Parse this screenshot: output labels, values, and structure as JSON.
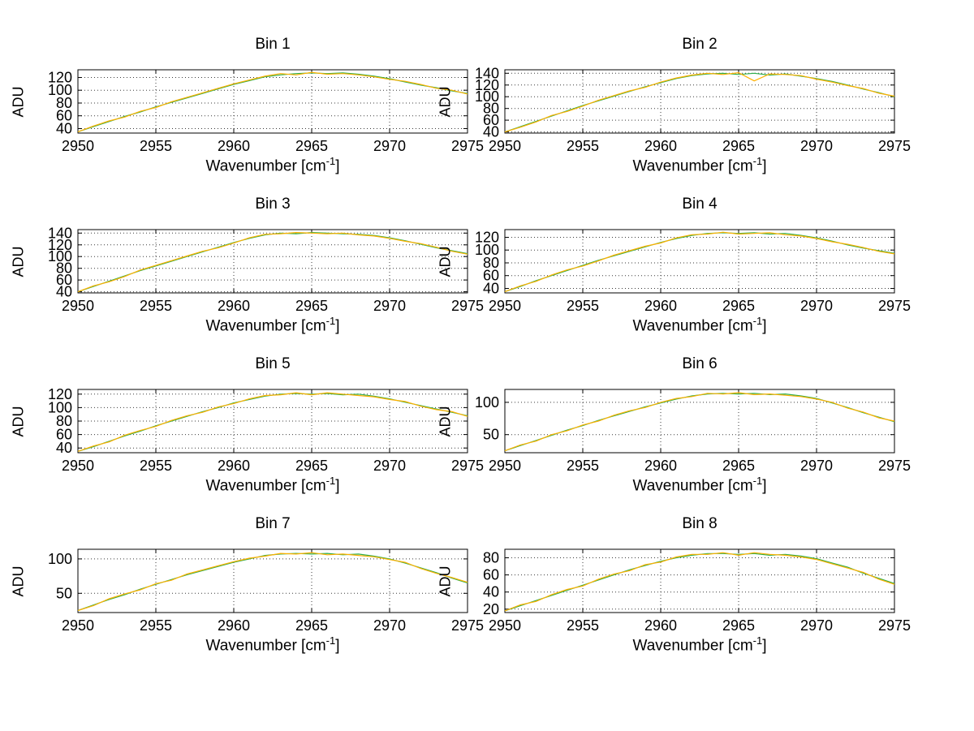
{
  "labels": {
    "xlabel_base": "Wavenumber [cm",
    "xlabel_sup": "-1",
    "xlabel_close": "]",
    "ylabel": "ADU"
  },
  "colors": {
    "series_green": "#2faf4b",
    "series_orange": "#ffb000",
    "grid": "#3a3a3a",
    "axis": "#000000",
    "background": "#ffffff"
  },
  "chart_data": [
    {
      "type": "line",
      "title": "Bin 1",
      "ylabel": "ADU",
      "xlabel": "Wavenumber [cm^-1]",
      "xlim": [
        2950,
        2975
      ],
      "ylim": [
        33,
        132
      ],
      "xticks": [
        2950,
        2955,
        2960,
        2965,
        2970,
        2975
      ],
      "yticks": [
        40,
        60,
        80,
        100,
        120
      ],
      "grid": true,
      "x_start": 2950,
      "x_step": 1,
      "series": [
        {
          "name": "spectrum-green",
          "color": "#2faf4b",
          "values": [
            35,
            43,
            51,
            59,
            66,
            74,
            81,
            88,
            95,
            102,
            109,
            115,
            121,
            124,
            126,
            127,
            126,
            127,
            125,
            122,
            118,
            113,
            108,
            104,
            99,
            95
          ]
        },
        {
          "name": "spectrum-orange",
          "color": "#ffb000",
          "values": [
            35,
            44,
            52,
            58,
            67,
            73,
            82,
            89,
            96,
            103,
            110,
            116,
            122,
            126,
            124,
            128,
            125,
            126,
            124,
            121,
            117,
            114,
            109,
            103,
            100,
            94
          ]
        }
      ]
    },
    {
      "type": "line",
      "title": "Bin 2",
      "ylabel": "ADU",
      "xlabel": "Wavenumber [cm^-1]",
      "xlim": [
        2950,
        2975
      ],
      "ylim": [
        38,
        146
      ],
      "xticks": [
        2950,
        2955,
        2960,
        2965,
        2970,
        2975
      ],
      "yticks": [
        40,
        60,
        80,
        100,
        120,
        140
      ],
      "grid": true,
      "x_start": 2950,
      "x_step": 1,
      "series": [
        {
          "name": "spectrum-green",
          "color": "#2faf4b",
          "values": [
            40,
            49,
            58,
            67,
            76,
            85,
            93,
            101,
            109,
            117,
            124,
            131,
            136,
            139,
            140,
            138,
            140,
            137,
            139,
            135,
            131,
            126,
            120,
            113,
            107,
            100
          ]
        },
        {
          "name": "spectrum-orange",
          "color": "#ffb000",
          "values": [
            40,
            48,
            57,
            68,
            75,
            84,
            94,
            102,
            110,
            116,
            125,
            132,
            137,
            140,
            138,
            141,
            127,
            139,
            138,
            136,
            130,
            125,
            119,
            114,
            106,
            101
          ]
        }
      ]
    },
    {
      "type": "line",
      "title": "Bin 3",
      "ylabel": "ADU",
      "xlabel": "Wavenumber [cm^-1]",
      "xlim": [
        2950,
        2975
      ],
      "ylim": [
        38,
        146
      ],
      "xticks": [
        2950,
        2955,
        2960,
        2965,
        2970,
        2975
      ],
      "yticks": [
        40,
        60,
        80,
        100,
        120,
        140
      ],
      "grid": true,
      "x_start": 2950,
      "x_step": 1,
      "series": [
        {
          "name": "spectrum-green",
          "color": "#2faf4b",
          "values": [
            40,
            49,
            58,
            67,
            76,
            84,
            92,
            100,
            108,
            116,
            124,
            131,
            137,
            140,
            139,
            141,
            140,
            139,
            138,
            136,
            132,
            127,
            121,
            115,
            110,
            105
          ]
        },
        {
          "name": "spectrum-orange",
          "color": "#ffb000",
          "values": [
            40,
            50,
            57,
            66,
            77,
            85,
            93,
            101,
            109,
            115,
            123,
            132,
            138,
            139,
            141,
            140,
            139,
            140,
            137,
            135,
            131,
            126,
            122,
            116,
            109,
            104
          ]
        }
      ]
    },
    {
      "type": "line",
      "title": "Bin 4",
      "ylabel": "ADU",
      "xlabel": "Wavenumber [cm^-1]",
      "xlim": [
        2950,
        2975
      ],
      "ylim": [
        33,
        132
      ],
      "xticks": [
        2950,
        2955,
        2960,
        2965,
        2970,
        2975
      ],
      "yticks": [
        40,
        60,
        80,
        100,
        120
      ],
      "grid": true,
      "x_start": 2950,
      "x_step": 1,
      "series": [
        {
          "name": "spectrum-green",
          "color": "#2faf4b",
          "values": [
            35,
            43,
            52,
            60,
            68,
            76,
            84,
            91,
            98,
            105,
            112,
            118,
            123,
            126,
            127,
            126,
            127,
            125,
            126,
            123,
            119,
            114,
            108,
            103,
            99,
            95
          ]
        },
        {
          "name": "spectrum-orange",
          "color": "#ffb000",
          "values": [
            35,
            44,
            51,
            61,
            69,
            75,
            83,
            92,
            99,
            106,
            111,
            119,
            124,
            125,
            128,
            125,
            126,
            127,
            124,
            122,
            118,
            113,
            109,
            104,
            98,
            94
          ]
        }
      ]
    },
    {
      "type": "line",
      "title": "Bin 5",
      "ylabel": "ADU",
      "xlabel": "Wavenumber [cm^-1]",
      "xlim": [
        2950,
        2975
      ],
      "ylim": [
        33,
        127
      ],
      "xticks": [
        2950,
        2955,
        2960,
        2965,
        2970,
        2975
      ],
      "yticks": [
        40,
        60,
        80,
        100,
        120
      ],
      "grid": true,
      "x_start": 2950,
      "x_step": 1,
      "series": [
        {
          "name": "spectrum-green",
          "color": "#2faf4b",
          "values": [
            35,
            42,
            50,
            58,
            65,
            73,
            80,
            87,
            94,
            100,
            107,
            112,
            117,
            120,
            121,
            120,
            121,
            119,
            120,
            117,
            113,
            108,
            103,
            98,
            93,
            88
          ]
        },
        {
          "name": "spectrum-orange",
          "color": "#ffb000",
          "values": [
            35,
            43,
            49,
            59,
            66,
            72,
            81,
            88,
            93,
            101,
            106,
            113,
            118,
            119,
            122,
            119,
            122,
            120,
            118,
            116,
            112,
            109,
            102,
            97,
            94,
            87
          ]
        }
      ]
    },
    {
      "type": "line",
      "title": "Bin 6",
      "ylabel": "ADU",
      "xlabel": "Wavenumber [cm^-1]",
      "xlim": [
        2950,
        2975
      ],
      "ylim": [
        22,
        120
      ],
      "xticks": [
        2950,
        2955,
        2960,
        2965,
        2970,
        2975
      ],
      "yticks": [
        50,
        100
      ],
      "grid": true,
      "x_start": 2950,
      "x_step": 1,
      "series": [
        {
          "name": "spectrum-green",
          "color": "#2faf4b",
          "values": [
            25,
            33,
            41,
            49,
            57,
            64,
            72,
            79,
            86,
            93,
            99,
            105,
            110,
            113,
            114,
            113,
            114,
            112,
            113,
            110,
            106,
            99,
            92,
            84,
            77,
            70
          ]
        },
        {
          "name": "spectrum-orange",
          "color": "#ffb000",
          "values": [
            25,
            34,
            40,
            50,
            56,
            65,
            71,
            80,
            87,
            92,
            100,
            106,
            109,
            114,
            113,
            115,
            112,
            113,
            111,
            109,
            105,
            100,
            91,
            85,
            76,
            71
          ]
        }
      ]
    },
    {
      "type": "line",
      "title": "Bin 7",
      "ylabel": "ADU",
      "xlabel": "Wavenumber [cm^-1]",
      "xlim": [
        2950,
        2975
      ],
      "ylim": [
        22,
        114
      ],
      "xticks": [
        2950,
        2955,
        2960,
        2965,
        2970,
        2975
      ],
      "yticks": [
        50,
        100
      ],
      "grid": true,
      "x_start": 2950,
      "x_step": 1,
      "series": [
        {
          "name": "spectrum-green",
          "color": "#2faf4b",
          "values": [
            25,
            33,
            41,
            48,
            56,
            63,
            70,
            77,
            83,
            89,
            95,
            100,
            105,
            107,
            108,
            107,
            108,
            106,
            107,
            104,
            100,
            94,
            87,
            80,
            72,
            65
          ]
        },
        {
          "name": "spectrum-orange",
          "color": "#ffb000",
          "values": [
            25,
            32,
            42,
            49,
            55,
            64,
            69,
            78,
            84,
            90,
            96,
            101,
            104,
            108,
            107,
            109,
            106,
            107,
            105,
            103,
            99,
            95,
            86,
            79,
            73,
            66
          ]
        }
      ]
    },
    {
      "type": "line",
      "title": "Bin 8",
      "ylabel": "ADU",
      "xlabel": "Wavenumber [cm^-1]",
      "xlim": [
        2950,
        2975
      ],
      "ylim": [
        16,
        90
      ],
      "xticks": [
        2950,
        2955,
        2960,
        2965,
        2970,
        2975
      ],
      "yticks": [
        20,
        40,
        60,
        80
      ],
      "grid": true,
      "x_start": 2950,
      "x_step": 1,
      "series": [
        {
          "name": "spectrum-green",
          "color": "#2faf4b",
          "values": [
            18,
            24,
            30,
            36,
            42,
            48,
            54,
            60,
            66,
            71,
            76,
            80,
            83,
            85,
            85,
            84,
            85,
            83,
            84,
            82,
            79,
            74,
            69,
            62,
            56,
            50
          ]
        },
        {
          "name": "spectrum-orange",
          "color": "#ffb000",
          "values": [
            18,
            25,
            29,
            37,
            43,
            47,
            55,
            61,
            65,
            72,
            75,
            81,
            84,
            84,
            86,
            83,
            86,
            84,
            83,
            81,
            78,
            73,
            68,
            63,
            55,
            49
          ]
        }
      ]
    }
  ],
  "layout_positions": {
    "note": "subplot grid 4 rows x 2 cols"
  }
}
